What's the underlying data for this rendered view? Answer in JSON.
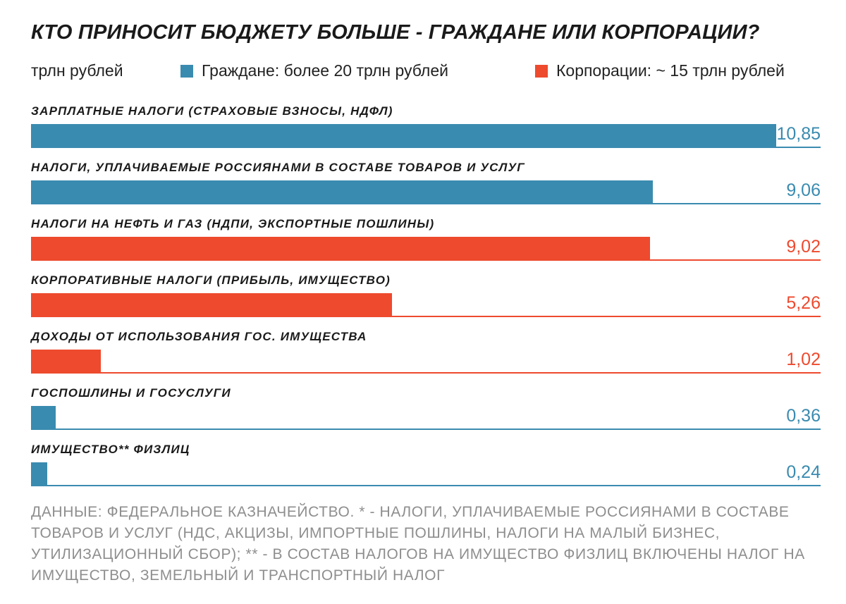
{
  "title": "КТО ПРИНОСИТ БЮДЖЕТУ БОЛЬШЕ - ГРАЖДАНЕ ИЛИ КОРПОРАЦИИ?",
  "legend": {
    "unit": "трлн рублей",
    "citizens": "Граждане: более 20 трлн рублей",
    "corporations": "Корпорации: ~ 15 трлн рублей"
  },
  "colors": {
    "citizens": "#3a8bb0",
    "corporations": "#ee4a2e"
  },
  "chart_data": {
    "type": "bar",
    "orientation": "horizontal",
    "title": "КТО ПРИНОСИТ БЮДЖЕТУ БОЛЬШЕ - ГРАЖДАНЕ ИЛИ КОРПОРАЦИИ?",
    "unit": "трлн рублей",
    "xlim": [
      0,
      11.5
    ],
    "grid": false,
    "legend_position": "top",
    "series": [
      {
        "name": "Граждане: более 20 трлн рублей",
        "key": "citizens"
      },
      {
        "name": "Корпорации: ~ 15 трлн рублей",
        "key": "corporations"
      }
    ],
    "bars": [
      {
        "category": "ЗАРПЛАТНЫЕ НАЛОГИ (СТРАХОВЫЕ ВЗНОСЫ, НДФЛ)",
        "value": 10.85,
        "value_label": "10,85",
        "series": "citizens"
      },
      {
        "category": "НАЛОГИ, УПЛАЧИВАЕМЫЕ РОССИЯНАМИ В СОСТАВЕ ТОВАРОВ И УСЛУГ",
        "value": 9.06,
        "value_label": "9,06",
        "series": "citizens"
      },
      {
        "category": "НАЛОГИ НА НЕФТЬ И ГАЗ (НДПИ, ЭКСПОРТНЫЕ ПОШЛИНЫ)",
        "value": 9.02,
        "value_label": "9,02",
        "series": "corporations"
      },
      {
        "category": "КОРПОРАТИВНЫЕ НАЛОГИ (ПРИБЫЛЬ, ИМУЩЕСТВО)",
        "value": 5.26,
        "value_label": "5,26",
        "series": "corporations"
      },
      {
        "category": "ДОХОДЫ ОТ ИСПОЛЬЗОВАНИЯ ГОС. ИМУЩЕСТВА",
        "value": 1.02,
        "value_label": "1,02",
        "series": "corporations"
      },
      {
        "category": "ГОСПОШЛИНЫ И ГОСУСЛУГИ",
        "value": 0.36,
        "value_label": "0,36",
        "series": "citizens"
      },
      {
        "category": "ИМУЩЕСТВО** ФИЗЛИЦ",
        "value": 0.24,
        "value_label": "0,24",
        "series": "citizens"
      }
    ]
  },
  "footnote": "ДАННЫЕ: ФЕДЕРАЛЬНОЕ КАЗНАЧЕЙСТВО. * - НАЛОГИ, УПЛАЧИВАЕМЫЕ РОССИЯНАМИ В СОСТАВЕ ТОВАРОВ И УСЛУГ (НДС, АКЦИЗЫ, ИМПОРТНЫЕ ПОШЛИНЫ, НАЛОГИ НА МАЛЫЙ БИЗНЕС, УТИЛИЗАЦИОННЫЙ СБОР); ** - В СОСТАВ НАЛОГОВ НА ИМУЩЕСТВО ФИЗЛИЦ ВКЛЮЧЕНЫ НАЛОГ НА ИМУЩЕСТВО, ЗЕМЕЛЬНЫЙ И ТРАНСПОРТНЫЙ НАЛОГ"
}
